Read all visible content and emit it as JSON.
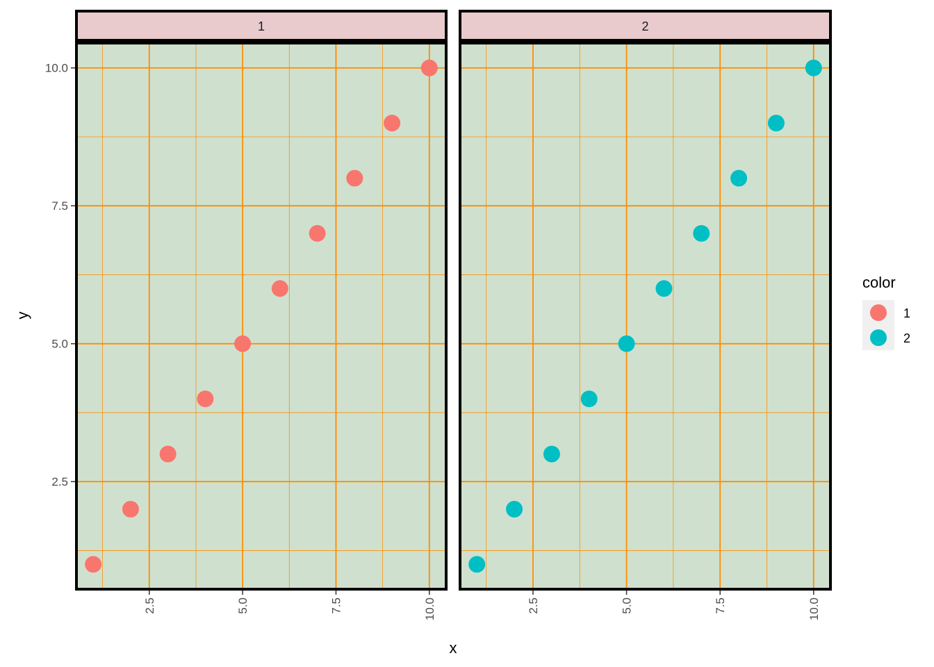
{
  "chart_data": {
    "type": "scatter",
    "xlabel": "x",
    "ylabel": "y",
    "xlim": [
      0.55,
      10.45
    ],
    "ylim": [
      0.55,
      10.45
    ],
    "x_ticks": [
      "2.5",
      "5.0",
      "7.5",
      "10.0"
    ],
    "y_ticks": [
      "2.5",
      "5.0",
      "7.5",
      "10.0"
    ],
    "x_tick_values": [
      2.5,
      5.0,
      7.5,
      10.0
    ],
    "y_tick_values": [
      2.5,
      5.0,
      7.5,
      10.0
    ],
    "grid": true,
    "facets": [
      {
        "strip_label": "1",
        "color_key": "1",
        "points": [
          [
            1,
            1
          ],
          [
            2,
            2
          ],
          [
            3,
            3
          ],
          [
            4,
            4
          ],
          [
            5,
            5
          ],
          [
            6,
            6
          ],
          [
            7,
            7
          ],
          [
            8,
            8
          ],
          [
            9,
            9
          ],
          [
            10,
            10
          ]
        ]
      },
      {
        "strip_label": "2",
        "color_key": "2",
        "points": [
          [
            1,
            1
          ],
          [
            2,
            2
          ],
          [
            3,
            3
          ],
          [
            4,
            4
          ],
          [
            5,
            5
          ],
          [
            6,
            6
          ],
          [
            7,
            7
          ],
          [
            8,
            8
          ],
          [
            9,
            9
          ],
          [
            10,
            10
          ]
        ]
      }
    ],
    "legend": {
      "title": "color",
      "placement": "right",
      "entries": [
        {
          "label": "1",
          "color": "#F8766D"
        },
        {
          "label": "2",
          "color": "#00BFC4"
        }
      ]
    },
    "colors": {
      "panel_background": "#CFE1CE",
      "grid": "#FF8C00",
      "strip_background": "#E9CBCD",
      "border": "#000000",
      "legend_key_background": "#F0F0F0"
    }
  }
}
